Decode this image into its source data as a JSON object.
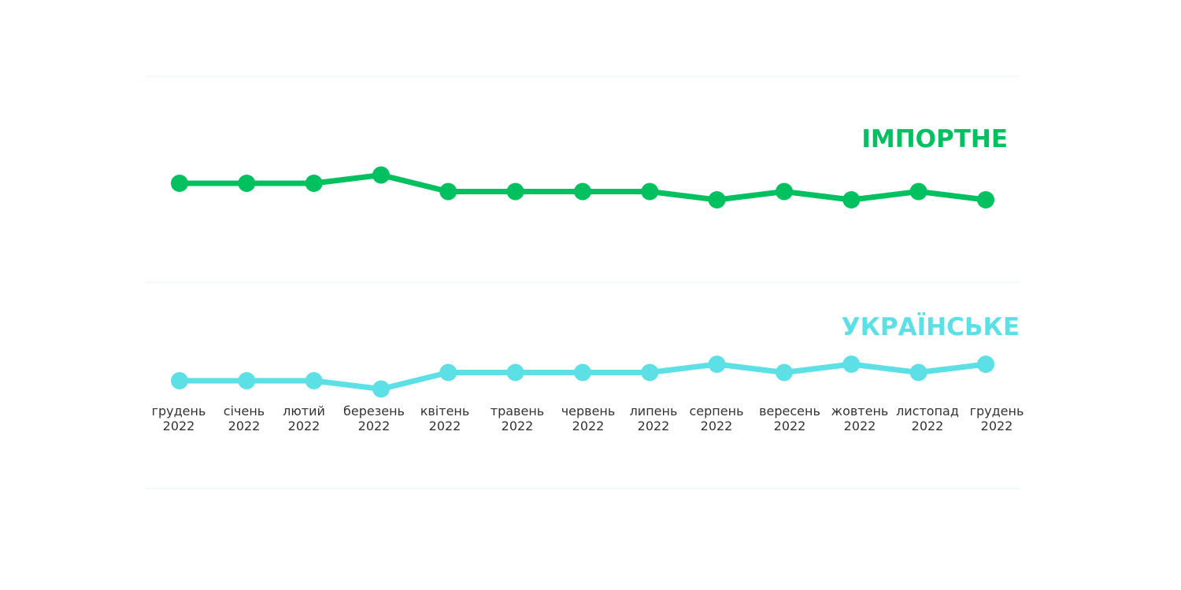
{
  "chart_data": {
    "type": "line",
    "categories": [
      [
        "грудень",
        "2022"
      ],
      [
        "січень",
        "2022"
      ],
      [
        "лютий",
        "2022"
      ],
      [
        "березень",
        "2022"
      ],
      [
        "квітень",
        "2022"
      ],
      [
        "травень",
        "2022"
      ],
      [
        "червень",
        "2022"
      ],
      [
        "липень",
        "2022"
      ],
      [
        "серпень",
        "2022"
      ],
      [
        "вересень",
        "2022"
      ],
      [
        "жовтень",
        "2022"
      ],
      [
        "листопад",
        "2022"
      ],
      [
        "грудень",
        "2022"
      ]
    ],
    "series": [
      {
        "name": "ІМПОРТНЕ",
        "color": "#00c060",
        "values": [
          0.0,
          0.0,
          0.0,
          1.0,
          -1.0,
          -1.0,
          -1.0,
          -1.0,
          -2.0,
          -1.0,
          -2.0,
          -1.0,
          -2.0
        ]
      },
      {
        "name": "УКРАЇНСЬКЕ",
        "color": "#5ce0e6",
        "values": [
          0.0,
          0.0,
          0.0,
          -1.0,
          1.0,
          1.0,
          1.0,
          1.0,
          2.0,
          1.0,
          2.0,
          1.0,
          2.0
        ]
      }
    ],
    "grid": true,
    "gridline_color": "#e2f4f2",
    "tick_label_color": "#333333"
  }
}
